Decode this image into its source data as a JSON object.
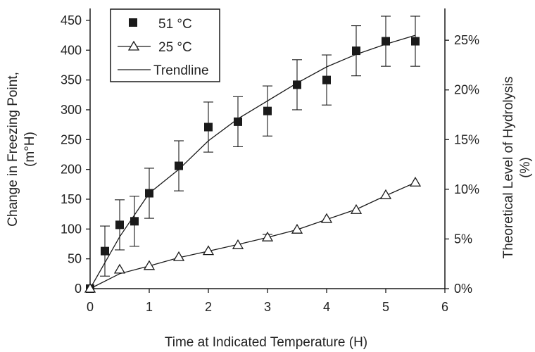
{
  "chart_data": {
    "type": "scatter",
    "xlabel": "Time at Indicated Temperature (H)",
    "ylabel_lines": [
      "Change in Freezing Point,",
      "(m°H)"
    ],
    "y2label_lines": [
      "Theoretical Level of Hydrolysis",
      "(%)"
    ],
    "xlim": [
      0,
      6
    ],
    "ylim": [
      0,
      470
    ],
    "y2lim": [
      0,
      0.282
    ],
    "x_ticks": [
      0,
      1,
      2,
      3,
      4,
      5,
      6
    ],
    "x_tick_labels": [
      "0",
      "1",
      "2",
      "3",
      "4",
      "5",
      "6"
    ],
    "y_ticks": [
      0,
      50,
      100,
      150,
      200,
      250,
      300,
      350,
      400,
      450
    ],
    "y_tick_labels": [
      "0",
      "50",
      "100",
      "150",
      "200",
      "250",
      "300",
      "350",
      "400",
      "450"
    ],
    "y2_ticks": [
      0,
      0.05,
      0.1,
      0.15,
      0.2,
      0.25
    ],
    "y2_tick_labels": [
      "0%",
      "5%",
      "10%",
      "15%",
      "20%",
      "25%"
    ],
    "grid": false,
    "legend_position": "top-left",
    "series": [
      {
        "name": "51 °C",
        "marker": "filled-square",
        "color": "#1a1a1a",
        "x": [
          0,
          0.25,
          0.5,
          0.75,
          1,
          1.5,
          2,
          2.5,
          3,
          3.5,
          4,
          4.5,
          5,
          5.5
        ],
        "y": [
          0,
          63,
          107,
          113,
          160,
          206,
          271,
          280,
          298,
          342,
          350,
          399,
          415,
          415
        ],
        "error": [
          0,
          42,
          42,
          42,
          42,
          42,
          42,
          42,
          42,
          42,
          42,
          42,
          42,
          42
        ]
      },
      {
        "name": "25 °C",
        "marker": "open-triangle",
        "color": "#1a1a1a",
        "x": [
          0,
          0.5,
          1,
          1.5,
          2,
          2.5,
          3,
          3.5,
          4,
          4.5,
          5,
          5.5
        ],
        "y": [
          0,
          32,
          38,
          53,
          63,
          73,
          86,
          99,
          117,
          132,
          157,
          178
        ],
        "error": [
          0,
          0,
          0,
          0,
          0,
          0,
          5,
          0,
          0,
          0,
          0,
          0
        ]
      }
    ],
    "trendlines": [
      {
        "name": "Trendline",
        "of_series": "51 °C",
        "x": [
          0,
          0.5,
          1,
          1.5,
          2,
          2.5,
          3,
          3.5,
          4,
          4.5,
          5,
          5.5
        ],
        "y": [
          0,
          87,
          160,
          200,
          248,
          285,
          315,
          345,
          372,
          393,
          410,
          425
        ]
      },
      {
        "of_series": "25 °C",
        "x": [
          0,
          0.5,
          1,
          1.5,
          2,
          2.5,
          3,
          3.5,
          4,
          4.5,
          5,
          5.5
        ],
        "y": [
          0,
          25,
          38,
          52,
          63,
          74,
          86,
          99,
          116,
          133,
          156,
          178
        ]
      }
    ],
    "legend": [
      {
        "label": "51 °C",
        "marker": "filled-square"
      },
      {
        "label": "25 °C",
        "marker": "open-triangle-line"
      },
      {
        "label": "Trendline",
        "marker": "line"
      }
    ]
  }
}
